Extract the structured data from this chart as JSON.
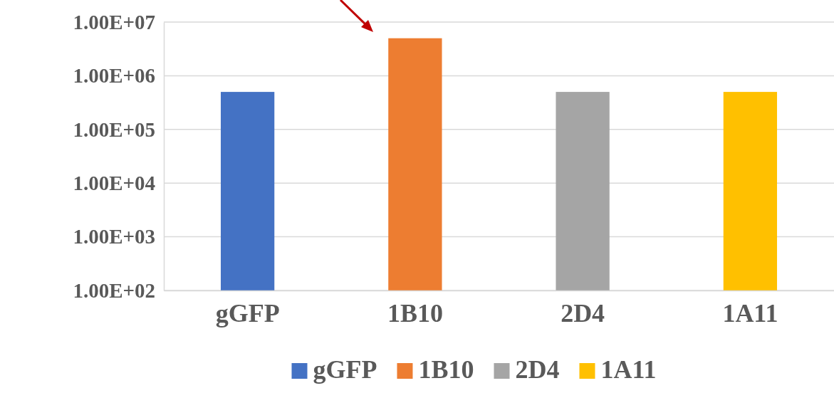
{
  "chart_data": {
    "type": "bar",
    "categories": [
      "gGFP",
      "1B10",
      "2D4",
      "1A11"
    ],
    "stacked": true,
    "series": [
      {
        "name": "gGFP",
        "color": "#4472c4",
        "values": [
          500000,
          null,
          null,
          null
        ]
      },
      {
        "name": "1B10",
        "color": "#ed7d31",
        "values": [
          null,
          5000000,
          null,
          null
        ]
      },
      {
        "name": "2D4",
        "color": "#a5a5a5",
        "values": [
          null,
          null,
          500000,
          null
        ]
      },
      {
        "name": "1A11",
        "color": "#ffc000",
        "values": [
          null,
          null,
          null,
          500000
        ]
      }
    ],
    "log": true,
    "ylim": [
      100,
      10000000
    ],
    "yticks": [
      {
        "value": 100,
        "label": "1.00E+02"
      },
      {
        "value": 1000,
        "label": "1.00E+03"
      },
      {
        "value": 10000,
        "label": "1.00E+04"
      },
      {
        "value": 100000,
        "label": "1.00E+05"
      },
      {
        "value": 1000000,
        "label": "1.00E+06"
      },
      {
        "value": 10000000,
        "label": "1.00E+07"
      }
    ],
    "grid": "y",
    "legend": "bottom"
  }
}
